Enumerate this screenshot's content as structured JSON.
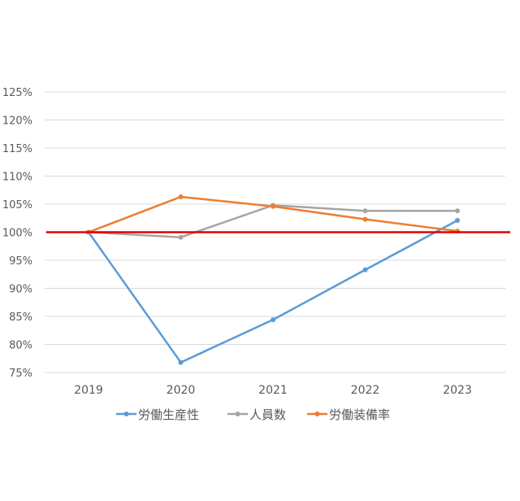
{
  "chart_data": {
    "type": "line",
    "categories": [
      "2019",
      "2020",
      "2021",
      "2022",
      "2023"
    ],
    "y_ticks": [
      "75%",
      "80%",
      "85%",
      "90%",
      "95%",
      "100%",
      "105%",
      "110%",
      "115%",
      "120%",
      "125%"
    ],
    "ylim": [
      75,
      125
    ],
    "y_unit": "%",
    "grid": true,
    "legend_position": "bottom",
    "series": [
      {
        "name": "労働生産性",
        "values": [
          100,
          76.8,
          84.4,
          93.3,
          102.1
        ],
        "color": "#5b9bd5"
      },
      {
        "name": "人員数",
        "values": [
          100,
          99.1,
          104.8,
          103.8,
          103.8
        ],
        "color": "#a5a5a5"
      },
      {
        "name": "労働装備率",
        "values": [
          100,
          106.3,
          104.6,
          102.3,
          100.2
        ],
        "color": "#ed7d31"
      }
    ],
    "reference_line": {
      "value": 100,
      "color": "#e00000"
    },
    "gridline_color": "#d9d9d9",
    "tick_color": "#595959"
  }
}
